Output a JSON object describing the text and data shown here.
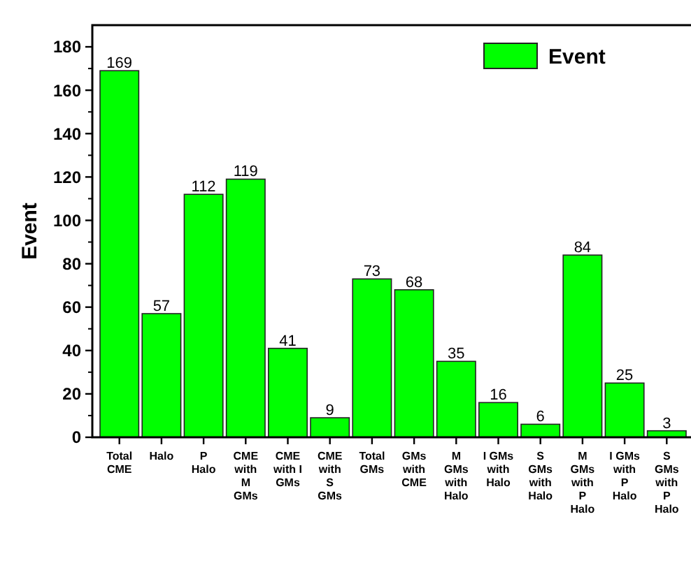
{
  "chart_data": {
    "type": "bar",
    "ylabel": "Event",
    "categories": [
      "Total\nCME",
      "Halo",
      "P\nHalo",
      "CME\nwith\nM\nGMs",
      "CME\nwith I\nGMs",
      "CME\nwith\nS\nGMs",
      "Total\nGMs",
      "GMs\nwith\nCME",
      "M\nGMs\nwith\nHalo",
      "I GMs\nwith\nHalo",
      "S\nGMs\nwith\nHalo",
      "M\nGMs\nwith\nP\nHalo",
      "I GMs\nwith\nP\nHalo",
      "S\nGMs\nwith\nP\nHalo"
    ],
    "series": [
      {
        "name": "Event",
        "color": "#00ff00",
        "values": [
          169,
          57,
          112,
          119,
          41,
          9,
          73,
          68,
          35,
          16,
          6,
          84,
          25,
          3
        ]
      }
    ],
    "ylim": [
      0,
      190
    ],
    "yticks": [
      0,
      20,
      40,
      60,
      80,
      100,
      120,
      140,
      160,
      180
    ],
    "data_labels": true,
    "legend": "top right",
    "grid": false
  }
}
